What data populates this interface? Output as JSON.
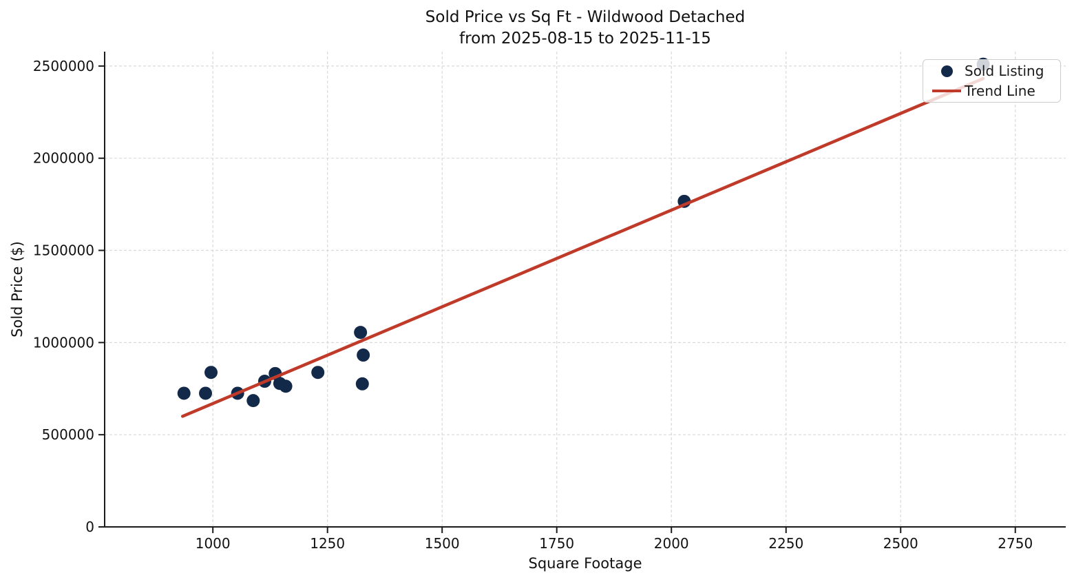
{
  "page": {
    "background": "#ffffff"
  },
  "chart_data": {
    "type": "scatter",
    "title": "Sold Price vs Sq Ft - Wildwood Detached",
    "subtitle": "from 2025-08-15 to 2025-11-15",
    "xlabel": "Square Footage",
    "ylabel": "Sold Price ($)",
    "xlim": [
      764,
      2860
    ],
    "ylim": [
      0,
      2578000
    ],
    "xticks": [
      1000,
      1250,
      1500,
      1750,
      2000,
      2250,
      2500,
      2750
    ],
    "yticks": [
      0,
      500000,
      1000000,
      1500000,
      2000000,
      2500000
    ],
    "grid": true,
    "grid_color": "#d9d9d9",
    "spine_color": "#1a1a1a",
    "series": [
      {
        "name": "Sold Listing",
        "type": "scatter",
        "color": "#12294a",
        "marker_radius": 9.5,
        "points": [
          [
            937,
            725000
          ],
          [
            984,
            725000
          ],
          [
            996,
            838000
          ],
          [
            1054,
            725000
          ],
          [
            1088,
            685000
          ],
          [
            1113,
            790000
          ],
          [
            1136,
            832000
          ],
          [
            1146,
            778000
          ],
          [
            1159,
            763000
          ],
          [
            1229,
            838000
          ],
          [
            1322,
            1055000
          ],
          [
            1328,
            932000
          ],
          [
            1326,
            776000
          ],
          [
            2028,
            1766000
          ],
          [
            2680,
            2510000
          ]
        ]
      },
      {
        "name": "Trend Line",
        "type": "line",
        "color": "#c03a2a",
        "line_width": 4.5,
        "points": [
          [
            934,
            600000
          ],
          [
            2680,
            2432000
          ]
        ]
      }
    ],
    "legend": {
      "position": "upper right",
      "items": [
        {
          "label": "Sold Listing",
          "marker": "dot",
          "color": "#12294a"
        },
        {
          "label": "Trend Line",
          "marker": "line",
          "color": "#c03a2a"
        }
      ]
    }
  }
}
